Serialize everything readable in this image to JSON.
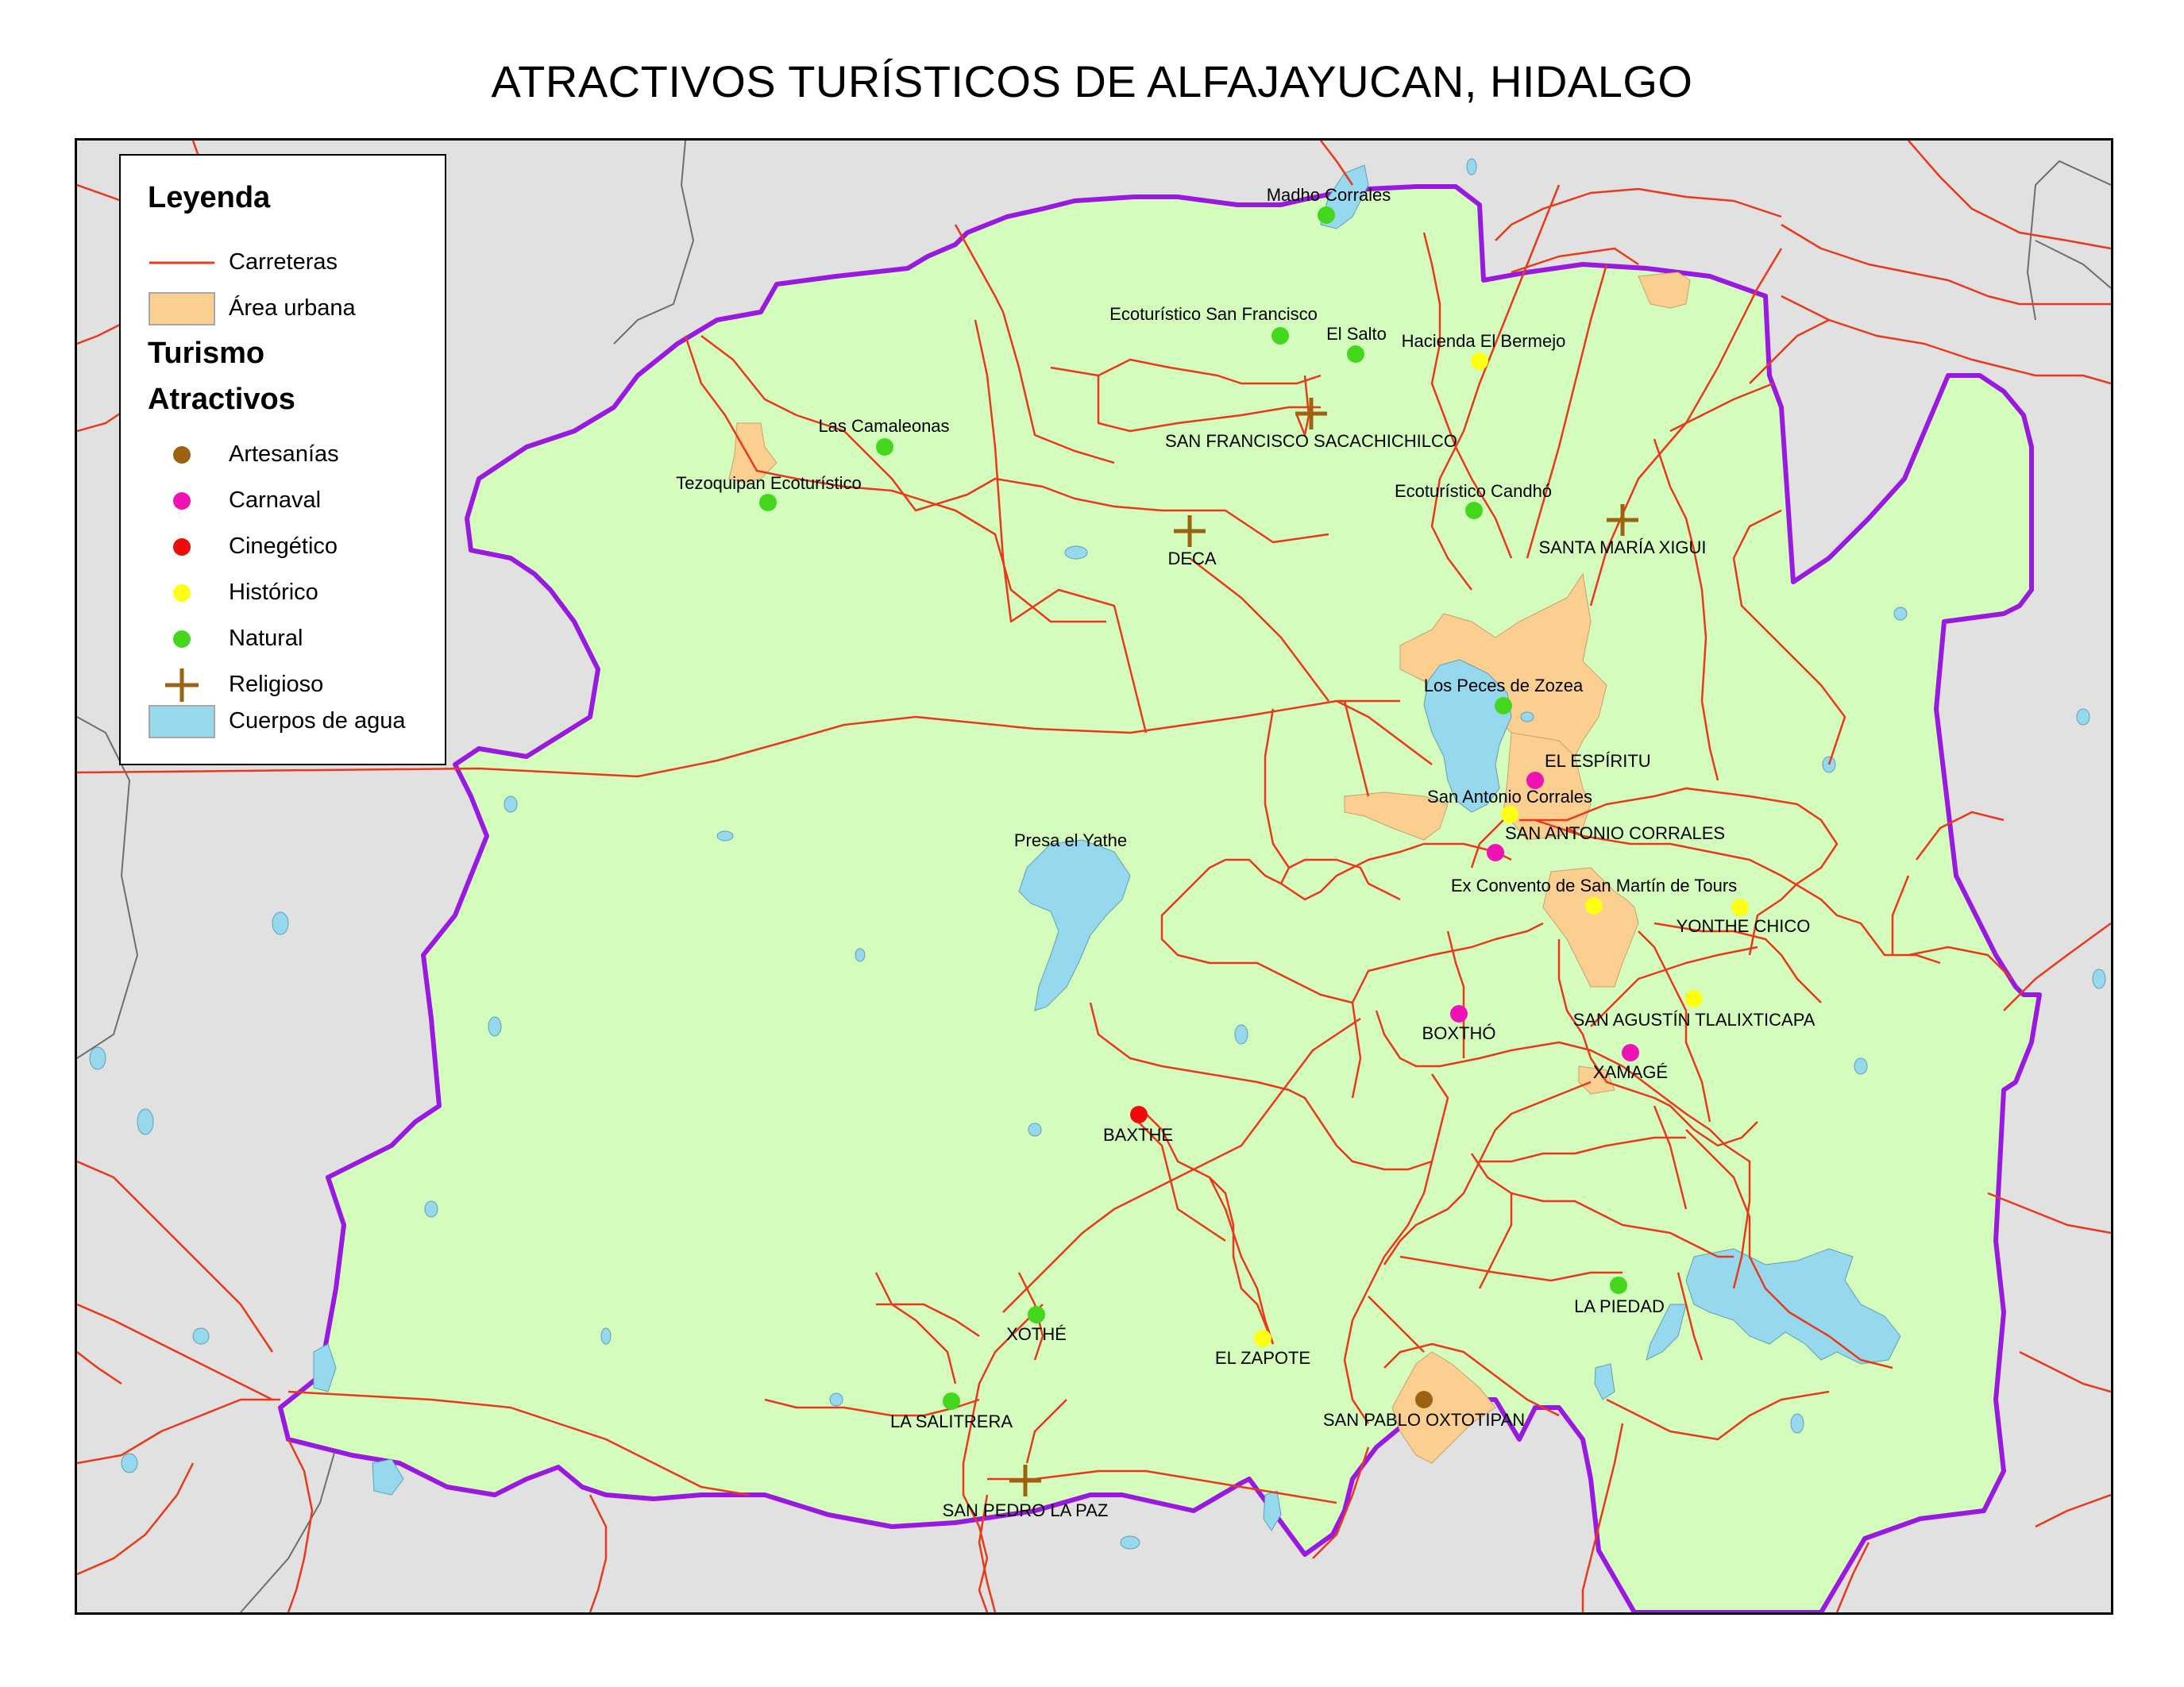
{
  "title": "ATRACTIVOS TURÍSTICOS DE ALFAJAYUCAN, HIDALGO",
  "colors": {
    "outside": "#e1e1e1",
    "municipality": "#d4fcbc",
    "boundary": "#9a19e0",
    "roads": "#e8391a",
    "urban": "#fbcf8f",
    "water": "#96d9ef",
    "artesanias": "#9b6210",
    "carnaval": "#f012b4",
    "cinegetico": "#f00b0b",
    "historico": "#ffff14",
    "natural": "#43d81e",
    "religioso": "#9b6210"
  },
  "legend": {
    "heading": "Leyenda",
    "roads": "Carreteras",
    "urban": "Área urbana",
    "section": "Turismo",
    "subsection": "Atractivos",
    "categories": [
      {
        "label": "Artesanías",
        "symbol": "dot",
        "color": "#9b6210"
      },
      {
        "label": "Carnaval",
        "symbol": "dot",
        "color": "#f012b4"
      },
      {
        "label": "Cinegético",
        "symbol": "dot",
        "color": "#f00b0b"
      },
      {
        "label": "Histórico",
        "symbol": "dot",
        "color": "#ffff14"
      },
      {
        "label": "Natural",
        "symbol": "dot",
        "color": "#43d81e"
      },
      {
        "label": "Religioso",
        "symbol": "cross",
        "color": "#9b6210"
      }
    ],
    "water": "Cuerpos de agua"
  },
  "attractions": [
    {
      "name": "Madho Corrales",
      "type": "natural"
    },
    {
      "name": "Ecoturístico San Francisco",
      "type": "natural"
    },
    {
      "name": "El Salto",
      "type": "natural"
    },
    {
      "name": "Hacienda El Bermejo",
      "type": "historico"
    },
    {
      "name": "SAN FRANCISCO SACACHICHILCO",
      "type": "religioso"
    },
    {
      "name": "Las Camaleonas",
      "type": "natural"
    },
    {
      "name": "Tezoquipan Ecoturístico",
      "type": "natural"
    },
    {
      "name": "Ecoturístico Candhó",
      "type": "natural"
    },
    {
      "name": "SANTA MARÍA XIGUI",
      "type": "religioso"
    },
    {
      "name": "DECA",
      "type": "religioso"
    },
    {
      "name": "Los Peces de Zozea",
      "type": "natural"
    },
    {
      "name": "EL ESPÍRITU",
      "type": "carnaval"
    },
    {
      "name": "San Antonio Corrales",
      "type": "historico"
    },
    {
      "name": "SAN ANTONIO CORRALES",
      "type": "carnaval"
    },
    {
      "name": "Presa el Yathe",
      "type": "water"
    },
    {
      "name": "Ex Convento de San Martín de Tours",
      "type": "historico"
    },
    {
      "name": "YONTHE CHICO",
      "type": "historico"
    },
    {
      "name": "BOXTHÓ",
      "type": "carnaval"
    },
    {
      "name": "SAN AGUSTÍN TLALIXTICAPA",
      "type": "historico"
    },
    {
      "name": "XAMAGÉ",
      "type": "carnaval"
    },
    {
      "name": "BAXTHE",
      "type": "cinegetico"
    },
    {
      "name": "LA PIEDAD",
      "type": "natural"
    },
    {
      "name": "XOTHÉ",
      "type": "natural"
    },
    {
      "name": "EL ZAPOTE",
      "type": "historico"
    },
    {
      "name": "LA SALITRERA",
      "type": "natural"
    },
    {
      "name": "SAN PABLO OXTOTIPAN",
      "type": "artesanias"
    },
    {
      "name": "SAN PEDRO LA PAZ",
      "type": "religioso"
    }
  ]
}
